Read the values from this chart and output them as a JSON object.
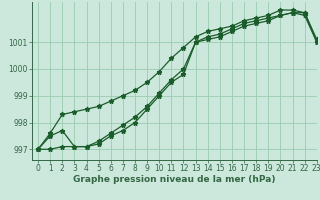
{
  "xlabel": "Graphe pression niveau de la mer (hPa)",
  "background_color": "#cce8dc",
  "grid_color": "#99ccb0",
  "line_color": "#1a5c2a",
  "xlim": [
    -0.5,
    23
  ],
  "ylim": [
    996.6,
    1002.5
  ],
  "yticks": [
    997,
    998,
    999,
    1000,
    1001
  ],
  "xticks": [
    0,
    1,
    2,
    3,
    4,
    5,
    6,
    7,
    8,
    9,
    10,
    11,
    12,
    13,
    14,
    15,
    16,
    17,
    18,
    19,
    20,
    21,
    22,
    23
  ],
  "series1_x": [
    0,
    1,
    2,
    3,
    4,
    5,
    6,
    7,
    8,
    9,
    10,
    11,
    12,
    13,
    14,
    15,
    16,
    17,
    18,
    19,
    20,
    21,
    22,
    23
  ],
  "series1_y": [
    997.0,
    997.5,
    997.7,
    997.1,
    997.1,
    997.2,
    997.5,
    997.7,
    998.0,
    998.5,
    999.0,
    999.5,
    999.8,
    1001.0,
    1001.1,
    1001.2,
    1001.4,
    1001.6,
    1001.7,
    1001.8,
    1002.0,
    1002.1,
    1002.0,
    1001.0
  ],
  "series2_x": [
    0,
    1,
    2,
    3,
    4,
    5,
    6,
    7,
    8,
    9,
    10,
    11,
    12,
    13,
    14,
    15,
    16,
    17,
    18,
    19,
    20,
    21,
    22,
    23
  ],
  "series2_y": [
    997.0,
    997.0,
    997.1,
    997.1,
    997.1,
    997.3,
    997.6,
    997.9,
    998.2,
    998.6,
    999.1,
    999.6,
    1000.0,
    1001.0,
    1001.2,
    1001.3,
    1001.5,
    1001.7,
    1001.8,
    1001.9,
    1002.0,
    1002.1,
    1002.1,
    1001.0
  ],
  "series3_x": [
    0,
    1,
    2,
    3,
    4,
    5,
    6,
    7,
    8,
    9,
    10,
    11,
    12,
    13,
    14,
    15,
    16,
    17,
    18,
    19,
    20,
    21,
    22,
    23
  ],
  "series3_y": [
    997.0,
    997.6,
    998.3,
    998.4,
    998.5,
    998.6,
    998.8,
    999.0,
    999.2,
    999.5,
    999.9,
    1000.4,
    1000.8,
    1001.2,
    1001.4,
    1001.5,
    1001.6,
    1001.8,
    1001.9,
    1002.0,
    1002.2,
    1002.2,
    1002.1,
    1001.1
  ],
  "marker": "*",
  "markersize": 3.5,
  "linewidth": 0.9,
  "xlabel_fontsize": 6.5,
  "tick_fontsize": 5.5,
  "spine_color": "#336644"
}
